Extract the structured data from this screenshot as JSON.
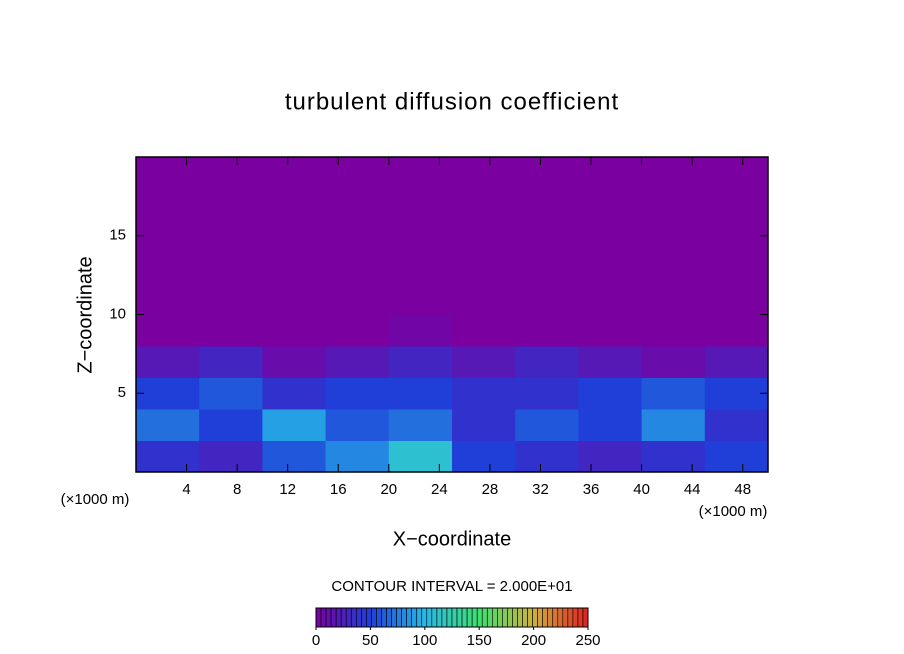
{
  "chart_data": {
    "type": "contour",
    "title": "turbulent diffusion coefficient",
    "xlabel": "X−coordinate",
    "ylabel": "Z−coordinate",
    "x_unit_label": "(×1000 m)",
    "y_unit_label": "(×1000 m)",
    "annotation": "CONTOUR INTERVAL = 2.000E+01",
    "x": [
      2.5,
      7.5,
      12.5,
      17.5,
      22.5,
      27.5,
      32.5,
      37.5,
      42.5,
      47.5
    ],
    "y": [
      1,
      3,
      5,
      7,
      9,
      11,
      13,
      15,
      17,
      19
    ],
    "values": [
      [
        40,
        30,
        60,
        80,
        110,
        50,
        40,
        30,
        40,
        50
      ],
      [
        70,
        50,
        90,
        60,
        70,
        40,
        60,
        50,
        80,
        40
      ],
      [
        50,
        60,
        40,
        50,
        50,
        40,
        40,
        50,
        60,
        50
      ],
      [
        20,
        30,
        10,
        20,
        30,
        20,
        30,
        20,
        10,
        20
      ],
      [
        0,
        0,
        0,
        0,
        5,
        0,
        0,
        0,
        0,
        0
      ],
      [
        0,
        0,
        0,
        0,
        0,
        0,
        0,
        0,
        0,
        0
      ],
      [
        0,
        0,
        0,
        0,
        0,
        0,
        0,
        0,
        0,
        0
      ],
      [
        0,
        0,
        0,
        0,
        0,
        0,
        0,
        0,
        0,
        0
      ],
      [
        0,
        0,
        0,
        0,
        0,
        0,
        0,
        0,
        0,
        0
      ],
      [
        0,
        0,
        0,
        0,
        0,
        0,
        0,
        0,
        0,
        0
      ]
    ],
    "xlim": [
      0,
      50
    ],
    "ylim": [
      0,
      20
    ],
    "xticks": [
      4,
      8,
      12,
      16,
      20,
      24,
      28,
      32,
      36,
      40,
      44,
      48
    ],
    "yticks": [
      5,
      10,
      15
    ],
    "clim": [
      0,
      250
    ],
    "cticks": [
      0,
      50,
      100,
      150,
      200,
      250
    ],
    "colors": [
      "#7a00a0",
      "#1f3fd8",
      "#28b8e8",
      "#40e070",
      "#d0b040",
      "#e02020"
    ]
  }
}
